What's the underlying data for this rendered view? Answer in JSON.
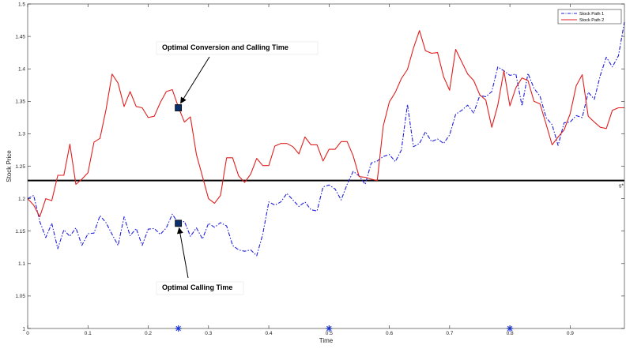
{
  "chart_data": {
    "type": "line",
    "title": "",
    "xlabel": "Time",
    "ylabel": "Stock Price",
    "xlim": [
      0,
      0.99
    ],
    "ylim": [
      1,
      1.5
    ],
    "x_ticks": [
      "0",
      "0.1",
      "0.2",
      "0.3",
      "0.4",
      "0.5",
      "0.6",
      "0.7",
      "0.8",
      "0.9"
    ],
    "y_ticks": [
      "1",
      "1.05",
      "1.1",
      "1.15",
      "1.2",
      "1.25",
      "1.3",
      "1.35",
      "1.4",
      "1.45",
      "1.5"
    ],
    "grid": false,
    "legend_position": "top-right",
    "colors": {
      "path1": "#1f1fdc",
      "path2": "#e01f1f",
      "threshold": "#000000",
      "marker_fill": "#0b2f6b",
      "star": "#1f3fff"
    },
    "series": [
      {
        "name": "Stock Path 1",
        "style": "dash-dot",
        "color": "#1f1fdc",
        "x": [
          0,
          0.01,
          0.02,
          0.03,
          0.04,
          0.05,
          0.06,
          0.07,
          0.08,
          0.09,
          0.1,
          0.11,
          0.12,
          0.13,
          0.14,
          0.15,
          0.16,
          0.17,
          0.18,
          0.19,
          0.2,
          0.21,
          0.22,
          0.23,
          0.24,
          0.25,
          0.26,
          0.27,
          0.28,
          0.29,
          0.3,
          0.31,
          0.32,
          0.33,
          0.34,
          0.35,
          0.36,
          0.37,
          0.38,
          0.39,
          0.4,
          0.41,
          0.42,
          0.43,
          0.44,
          0.45,
          0.46,
          0.47,
          0.48,
          0.49,
          0.5,
          0.51,
          0.52,
          0.53,
          0.54,
          0.55,
          0.56,
          0.57,
          0.58,
          0.59,
          0.6,
          0.61,
          0.62,
          0.63,
          0.64,
          0.65,
          0.66,
          0.67,
          0.68,
          0.69,
          0.7,
          0.71,
          0.72,
          0.73,
          0.74,
          0.75,
          0.76,
          0.77,
          0.78,
          0.79,
          0.8,
          0.81,
          0.82,
          0.83,
          0.84,
          0.85,
          0.86,
          0.87,
          0.88,
          0.89,
          0.9,
          0.91,
          0.92,
          0.93,
          0.94,
          0.95,
          0.96,
          0.97,
          0.98,
          0.99
        ],
        "y": [
          1.2,
          1.205,
          1.165,
          1.14,
          1.162,
          1.123,
          1.152,
          1.142,
          1.155,
          1.128,
          1.146,
          1.147,
          1.174,
          1.163,
          1.145,
          1.128,
          1.172,
          1.143,
          1.154,
          1.128,
          1.153,
          1.154,
          1.145,
          1.155,
          1.176,
          1.162,
          1.165,
          1.142,
          1.155,
          1.138,
          1.162,
          1.156,
          1.163,
          1.158,
          1.128,
          1.121,
          1.119,
          1.121,
          1.112,
          1.145,
          1.195,
          1.19,
          1.195,
          1.208,
          1.198,
          1.188,
          1.195,
          1.183,
          1.181,
          1.218,
          1.221,
          1.215,
          1.198,
          1.222,
          1.242,
          1.235,
          1.222,
          1.255,
          1.258,
          1.265,
          1.268,
          1.257,
          1.275,
          1.345,
          1.28,
          1.285,
          1.303,
          1.288,
          1.292,
          1.285,
          1.298,
          1.33,
          1.336,
          1.344,
          1.332,
          1.359,
          1.357,
          1.365,
          1.403,
          1.397,
          1.39,
          1.392,
          1.343,
          1.393,
          1.37,
          1.358,
          1.325,
          1.314,
          1.282,
          1.317,
          1.318,
          1.328,
          1.325,
          1.364,
          1.353,
          1.39,
          1.418,
          1.403,
          1.42,
          1.472
        ]
      },
      {
        "name": "Stock Path 2",
        "style": "solid",
        "color": "#e01f1f",
        "x": [
          0,
          0.01,
          0.02,
          0.03,
          0.04,
          0.05,
          0.06,
          0.07,
          0.08,
          0.09,
          0.1,
          0.11,
          0.12,
          0.13,
          0.14,
          0.15,
          0.16,
          0.17,
          0.18,
          0.19,
          0.2,
          0.21,
          0.22,
          0.23,
          0.24,
          0.25,
          0.26,
          0.27,
          0.28,
          0.29,
          0.3,
          0.31,
          0.32,
          0.33,
          0.34,
          0.35,
          0.36,
          0.37,
          0.38,
          0.39,
          0.4,
          0.41,
          0.42,
          0.43,
          0.44,
          0.45,
          0.46,
          0.47,
          0.48,
          0.49,
          0.5,
          0.51,
          0.52,
          0.53,
          0.54,
          0.55,
          0.56,
          0.57,
          0.58,
          0.59,
          0.6,
          0.61,
          0.62,
          0.63,
          0.64,
          0.65,
          0.66,
          0.67,
          0.68,
          0.69,
          0.7,
          0.71,
          0.72,
          0.73,
          0.74,
          0.75,
          0.76,
          0.77,
          0.78,
          0.79,
          0.8,
          0.81,
          0.82,
          0.83,
          0.84,
          0.85,
          0.86,
          0.87,
          0.88,
          0.89,
          0.9,
          0.91,
          0.92,
          0.93,
          0.94,
          0.95,
          0.96,
          0.97,
          0.98,
          0.99
        ],
        "y": [
          1.2,
          1.19,
          1.172,
          1.2,
          1.197,
          1.236,
          1.236,
          1.284,
          1.222,
          1.23,
          1.24,
          1.287,
          1.293,
          1.337,
          1.392,
          1.378,
          1.342,
          1.365,
          1.342,
          1.34,
          1.325,
          1.327,
          1.348,
          1.365,
          1.368,
          1.341,
          1.318,
          1.326,
          1.268,
          1.234,
          1.2,
          1.193,
          1.205,
          1.263,
          1.263,
          1.235,
          1.225,
          1.238,
          1.262,
          1.251,
          1.251,
          1.281,
          1.285,
          1.285,
          1.28,
          1.269,
          1.295,
          1.283,
          1.283,
          1.258,
          1.276,
          1.276,
          1.288,
          1.288,
          1.266,
          1.234,
          1.233,
          1.23,
          1.228,
          1.312,
          1.349,
          1.364,
          1.385,
          1.399,
          1.432,
          1.459,
          1.428,
          1.424,
          1.425,
          1.388,
          1.367,
          1.43,
          1.411,
          1.392,
          1.382,
          1.36,
          1.352,
          1.31,
          1.344,
          1.397,
          1.343,
          1.371,
          1.386,
          1.382,
          1.35,
          1.346,
          1.315,
          1.283,
          1.295,
          1.306,
          1.331,
          1.374,
          1.391,
          1.327,
          1.318,
          1.31,
          1.308,
          1.336,
          1.34,
          1.34
        ]
      }
    ],
    "threshold_line": {
      "y": 1.228,
      "label": "s*"
    },
    "markers": [
      {
        "name": "conversion-calling",
        "x": 0.25,
        "y": 1.34
      },
      {
        "name": "calling",
        "x": 0.25,
        "y": 1.162
      }
    ],
    "star_marks": [
      0.25,
      0.5,
      0.8
    ],
    "annotations": [
      {
        "text": "Optimal Conversion and Calling Time",
        "anchor": "conversion-calling"
      },
      {
        "text": "Optimal Calling Time",
        "anchor": "calling"
      }
    ]
  }
}
